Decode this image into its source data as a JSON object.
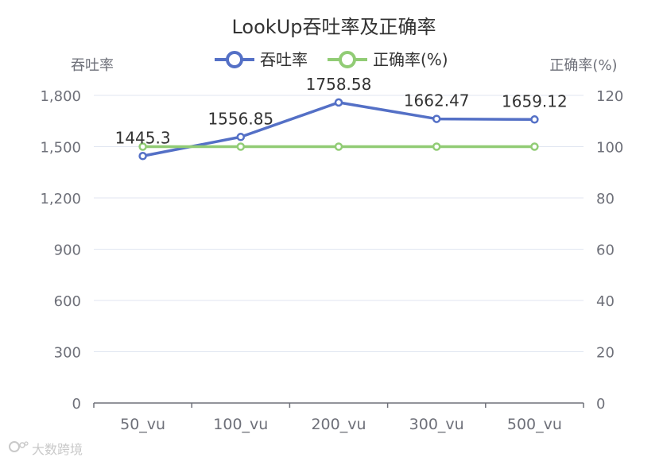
{
  "colors": {
    "throughput": "#5470c6",
    "accuracy": "#91cc75",
    "axis_text": "#6e7079",
    "axis_line": "#6e7079",
    "grid": "#e0e6f1",
    "title": "#333333",
    "label": "#333333"
  },
  "watermark": {
    "icon": "logo-icon",
    "text": "大数跨境"
  },
  "chart_data": {
    "type": "line",
    "title": "LookUp吞吐率及正确率",
    "categories": [
      "50_vu",
      "100_vu",
      "200_vu",
      "300_vu",
      "500_vu"
    ],
    "y_left": {
      "label": "吞吐率",
      "range": [
        0,
        1800
      ],
      "ticks": [
        "0",
        "300",
        "600",
        "900",
        "1,200",
        "1,500",
        "1,800"
      ]
    },
    "y_right": {
      "label": "正确率(%)",
      "range": [
        0,
        120
      ],
      "ticks": [
        "0",
        "20",
        "40",
        "60",
        "80",
        "100",
        "120"
      ]
    },
    "series": [
      {
        "name": "吞吐率",
        "axis": "left",
        "values": [
          1445.3,
          1556.85,
          1758.58,
          1662.47,
          1659.12
        ],
        "labels": [
          "1445.3",
          "1556.85",
          "1758.58",
          "1662.47",
          "1659.12"
        ]
      },
      {
        "name": "正确率(%)",
        "axis": "right",
        "values": [
          100,
          100,
          100,
          100,
          100
        ]
      }
    ],
    "legend_position": "top-center",
    "grid": true
  }
}
